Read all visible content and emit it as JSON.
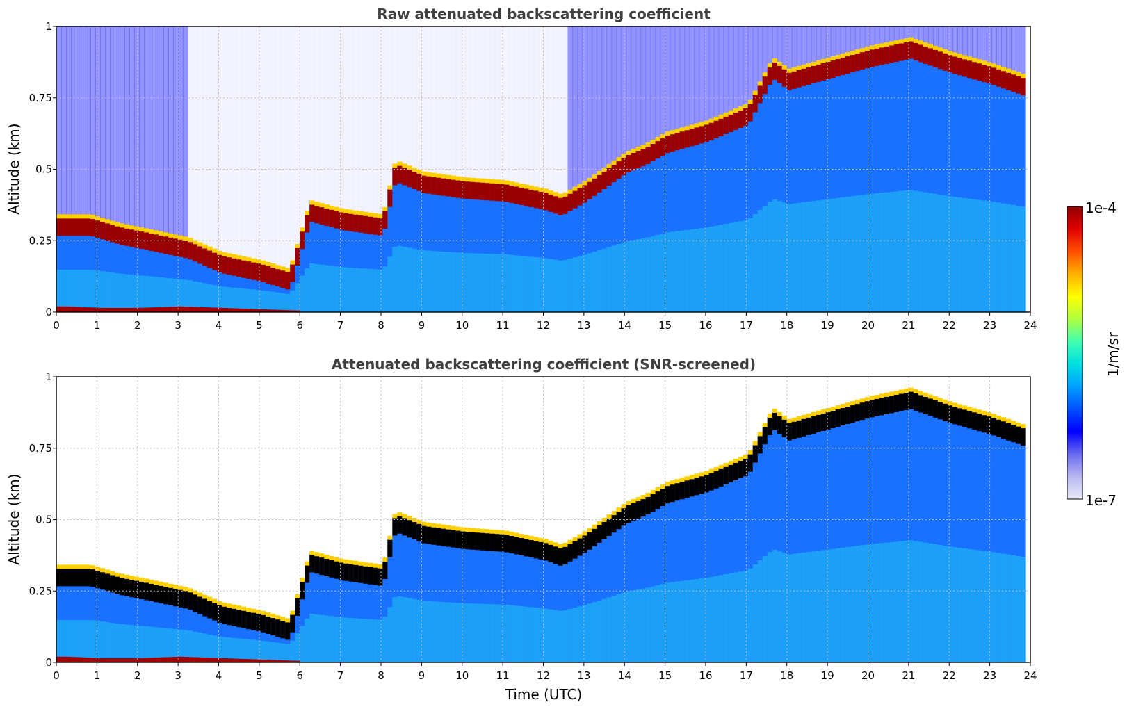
{
  "chart_data": [
    {
      "type": "heatmap",
      "title": "Raw attenuated backscattering coefficient",
      "xlabel": "",
      "ylabel": "Altitude (km)",
      "xlim": [
        0,
        24
      ],
      "ylim": [
        0,
        1
      ],
      "x_ticks": [
        "0",
        "1",
        "2",
        "3",
        "4",
        "5",
        "6",
        "7",
        "8",
        "9",
        "10",
        "11",
        "12",
        "13",
        "14",
        "15",
        "16",
        "17",
        "18",
        "19",
        "20",
        "21",
        "22",
        "23",
        "24"
      ],
      "y_ticks": [
        "0",
        "0.25",
        "0.5",
        "0.75",
        "1"
      ],
      "grid": true,
      "color_scale": "log",
      "layers": [
        {
          "name": "surface layer",
          "x": [
            0,
            0.2,
            1,
            2,
            3,
            4,
            5,
            6
          ],
          "y": [
            0.02,
            0.02,
            0.015,
            0.015,
            0.02,
            0.015,
            0.01,
            0.005
          ]
        },
        {
          "name": "aerosol layer top",
          "x": [
            0.8,
            1.5,
            2.2,
            3.2,
            4,
            5,
            5.7,
            6.2,
            7,
            8,
            8.3,
            9,
            10,
            11,
            12,
            12.4,
            13,
            14,
            14.5,
            15,
            16,
            17,
            17.6,
            18,
            19,
            20,
            21,
            22,
            23,
            23.8
          ],
          "y": [
            0.33,
            0.3,
            0.28,
            0.25,
            0.2,
            0.17,
            0.14,
            0.38,
            0.35,
            0.33,
            0.52,
            0.48,
            0.46,
            0.45,
            0.42,
            0.4,
            0.45,
            0.55,
            0.58,
            0.62,
            0.66,
            0.72,
            0.88,
            0.84,
            0.88,
            0.92,
            0.95,
            0.9,
            0.86,
            0.82
          ]
        }
      ]
    },
    {
      "type": "heatmap",
      "title": "Attenuated backscattering coefficient (SNR-screened)",
      "xlabel": "Time (UTC)",
      "ylabel": "Altitude (km)",
      "xlim": [
        0,
        24
      ],
      "ylim": [
        0,
        1
      ],
      "x_ticks": [
        "0",
        "1",
        "2",
        "3",
        "4",
        "5",
        "6",
        "7",
        "8",
        "9",
        "10",
        "11",
        "12",
        "13",
        "14",
        "15",
        "16",
        "17",
        "18",
        "19",
        "20",
        "21",
        "22",
        "23",
        "24"
      ],
      "y_ticks": [
        "0",
        "0.25",
        "0.5",
        "0.75",
        "1"
      ],
      "grid": true,
      "color_scale": "log",
      "layers": [
        {
          "name": "surface layer",
          "x": [
            0,
            0.2,
            1,
            2,
            3,
            4,
            5,
            6
          ],
          "y": [
            0.02,
            0.02,
            0.015,
            0.015,
            0.02,
            0.015,
            0.01,
            0.005
          ]
        },
        {
          "name": "aerosol layer top",
          "x": [
            0.8,
            1.5,
            2.2,
            3.2,
            4,
            5,
            5.7,
            6.2,
            7,
            8,
            8.3,
            9,
            10,
            11,
            12,
            12.4,
            13,
            14,
            14.5,
            15,
            16,
            17,
            17.6,
            18,
            19,
            20,
            21,
            22,
            23,
            23.8
          ],
          "y": [
            0.33,
            0.3,
            0.28,
            0.25,
            0.2,
            0.17,
            0.14,
            0.38,
            0.35,
            0.33,
            0.52,
            0.48,
            0.46,
            0.45,
            0.42,
            0.4,
            0.45,
            0.55,
            0.58,
            0.62,
            0.66,
            0.72,
            0.88,
            0.84,
            0.88,
            0.92,
            0.95,
            0.9,
            0.86,
            0.82
          ]
        }
      ]
    }
  ],
  "colorbar": {
    "label": "1/m/sr",
    "max_label": "1e-4",
    "min_label": "1e-7",
    "colors": [
      "#e8e8f8",
      "#b8b8f0",
      "#6a6af0",
      "#0000ff",
      "#0050ff",
      "#00a0ff",
      "#00e0e0",
      "#40ffb0",
      "#b0ff40",
      "#ffff00",
      "#ffb000",
      "#ff5000",
      "#e00000",
      "#900000"
    ]
  }
}
